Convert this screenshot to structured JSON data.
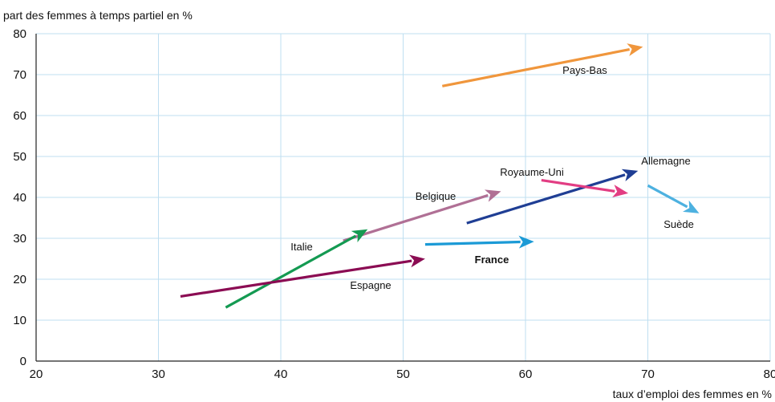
{
  "chart_data": {
    "type": "scatter",
    "title": "",
    "ylabel": "part des femmes à temps partiel en %",
    "xlabel": "taux d’emploi des femmes en %",
    "xlim": [
      20,
      80
    ],
    "ylim": [
      0,
      80
    ],
    "xticks": [
      "20",
      "30",
      "40",
      "50",
      "60",
      "70",
      "80"
    ],
    "yticks": [
      "0",
      "10",
      "20",
      "30",
      "40",
      "50",
      "60",
      "70",
      "80"
    ],
    "grid": true,
    "series": [
      {
        "name": "Pays-Bas",
        "color": "#f0963c",
        "from": [
          53.2,
          67.2
        ],
        "to": [
          69.6,
          76.8
        ]
      },
      {
        "name": "Allemagne",
        "color": "#1f3e94",
        "from": [
          55.2,
          33.7
        ],
        "to": [
          69.2,
          46.5
        ]
      },
      {
        "name": "Royaume-Uni",
        "color": "#e23d83",
        "from": [
          61.3,
          44.2
        ],
        "to": [
          68.4,
          41.0
        ]
      },
      {
        "name": "Belgique",
        "color": "#b07095",
        "from": [
          45.1,
          29.4
        ],
        "to": [
          58.0,
          41.5
        ]
      },
      {
        "name": "Suède",
        "color": "#4db1e0",
        "from": [
          70.0,
          42.9
        ],
        "to": [
          74.2,
          36.1
        ]
      },
      {
        "name": "Italie",
        "color": "#149a52",
        "from": [
          35.5,
          13.1
        ],
        "to": [
          47.1,
          32.2
        ]
      },
      {
        "name": "France",
        "color": "#1b9ad6",
        "from": [
          51.8,
          28.5
        ],
        "to": [
          60.7,
          29.2
        ]
      },
      {
        "name": "Espagne",
        "color": "#8b0c53",
        "from": [
          31.8,
          15.8
        ],
        "to": [
          51.8,
          25.0
        ]
      }
    ]
  }
}
